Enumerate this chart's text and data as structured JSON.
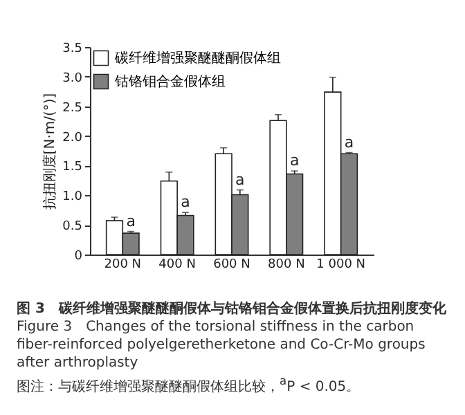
{
  "chart_data": {
    "type": "bar",
    "title": "图 3　碳纤维增强聚醚醚酮假体与钴铬钼合金假体置换后抗扭刚度变化",
    "subtitle": "Figure 3　Changes of the torsional stiffness in the carbon fiber-reinforced polyelgeretherketone and Co-Cr-Mo groups after arthroplasty",
    "annotations": [
      "图注：与碳纤维增强聚醚醚酮假体组比较，$^{a}$P < 0.05。"
    ],
    "ylabel": "抗扭刚度[N·m/(°)]",
    "categories": [
      "200 N",
      "400 N",
      "600 N",
      "800 N",
      "1 000 N"
    ],
    "series": [
      {
        "name": "碳纤维增强聚醚醚酮假体组",
        "color": "#ffffff",
        "values": [
          0.57,
          1.24,
          1.7,
          2.26,
          2.74
        ],
        "errors": [
          0.06,
          0.15,
          0.1,
          0.1,
          0.25
        ]
      },
      {
        "name": "钴铬钼合金假体组",
        "color": "#7f7f7f",
        "values": [
          0.36,
          0.66,
          1.01,
          1.36,
          1.7
        ],
        "errors": [
          0.03,
          0.05,
          0.08,
          0.05,
          0.02
        ],
        "value_labels": [
          "a",
          "a",
          "a",
          "a",
          "a"
        ]
      }
    ],
    "ylim": [
      0,
      3.5
    ],
    "yticks": [
      0,
      0.5,
      {
        "value": 1,
        "label": "1.0"
      },
      1.5,
      {
        "value": 2,
        "label": "2.0"
      },
      2.5,
      {
        "value": 3,
        "label": "3.0"
      },
      3.5
    ],
    "grid": false,
    "legend": "top left"
  }
}
